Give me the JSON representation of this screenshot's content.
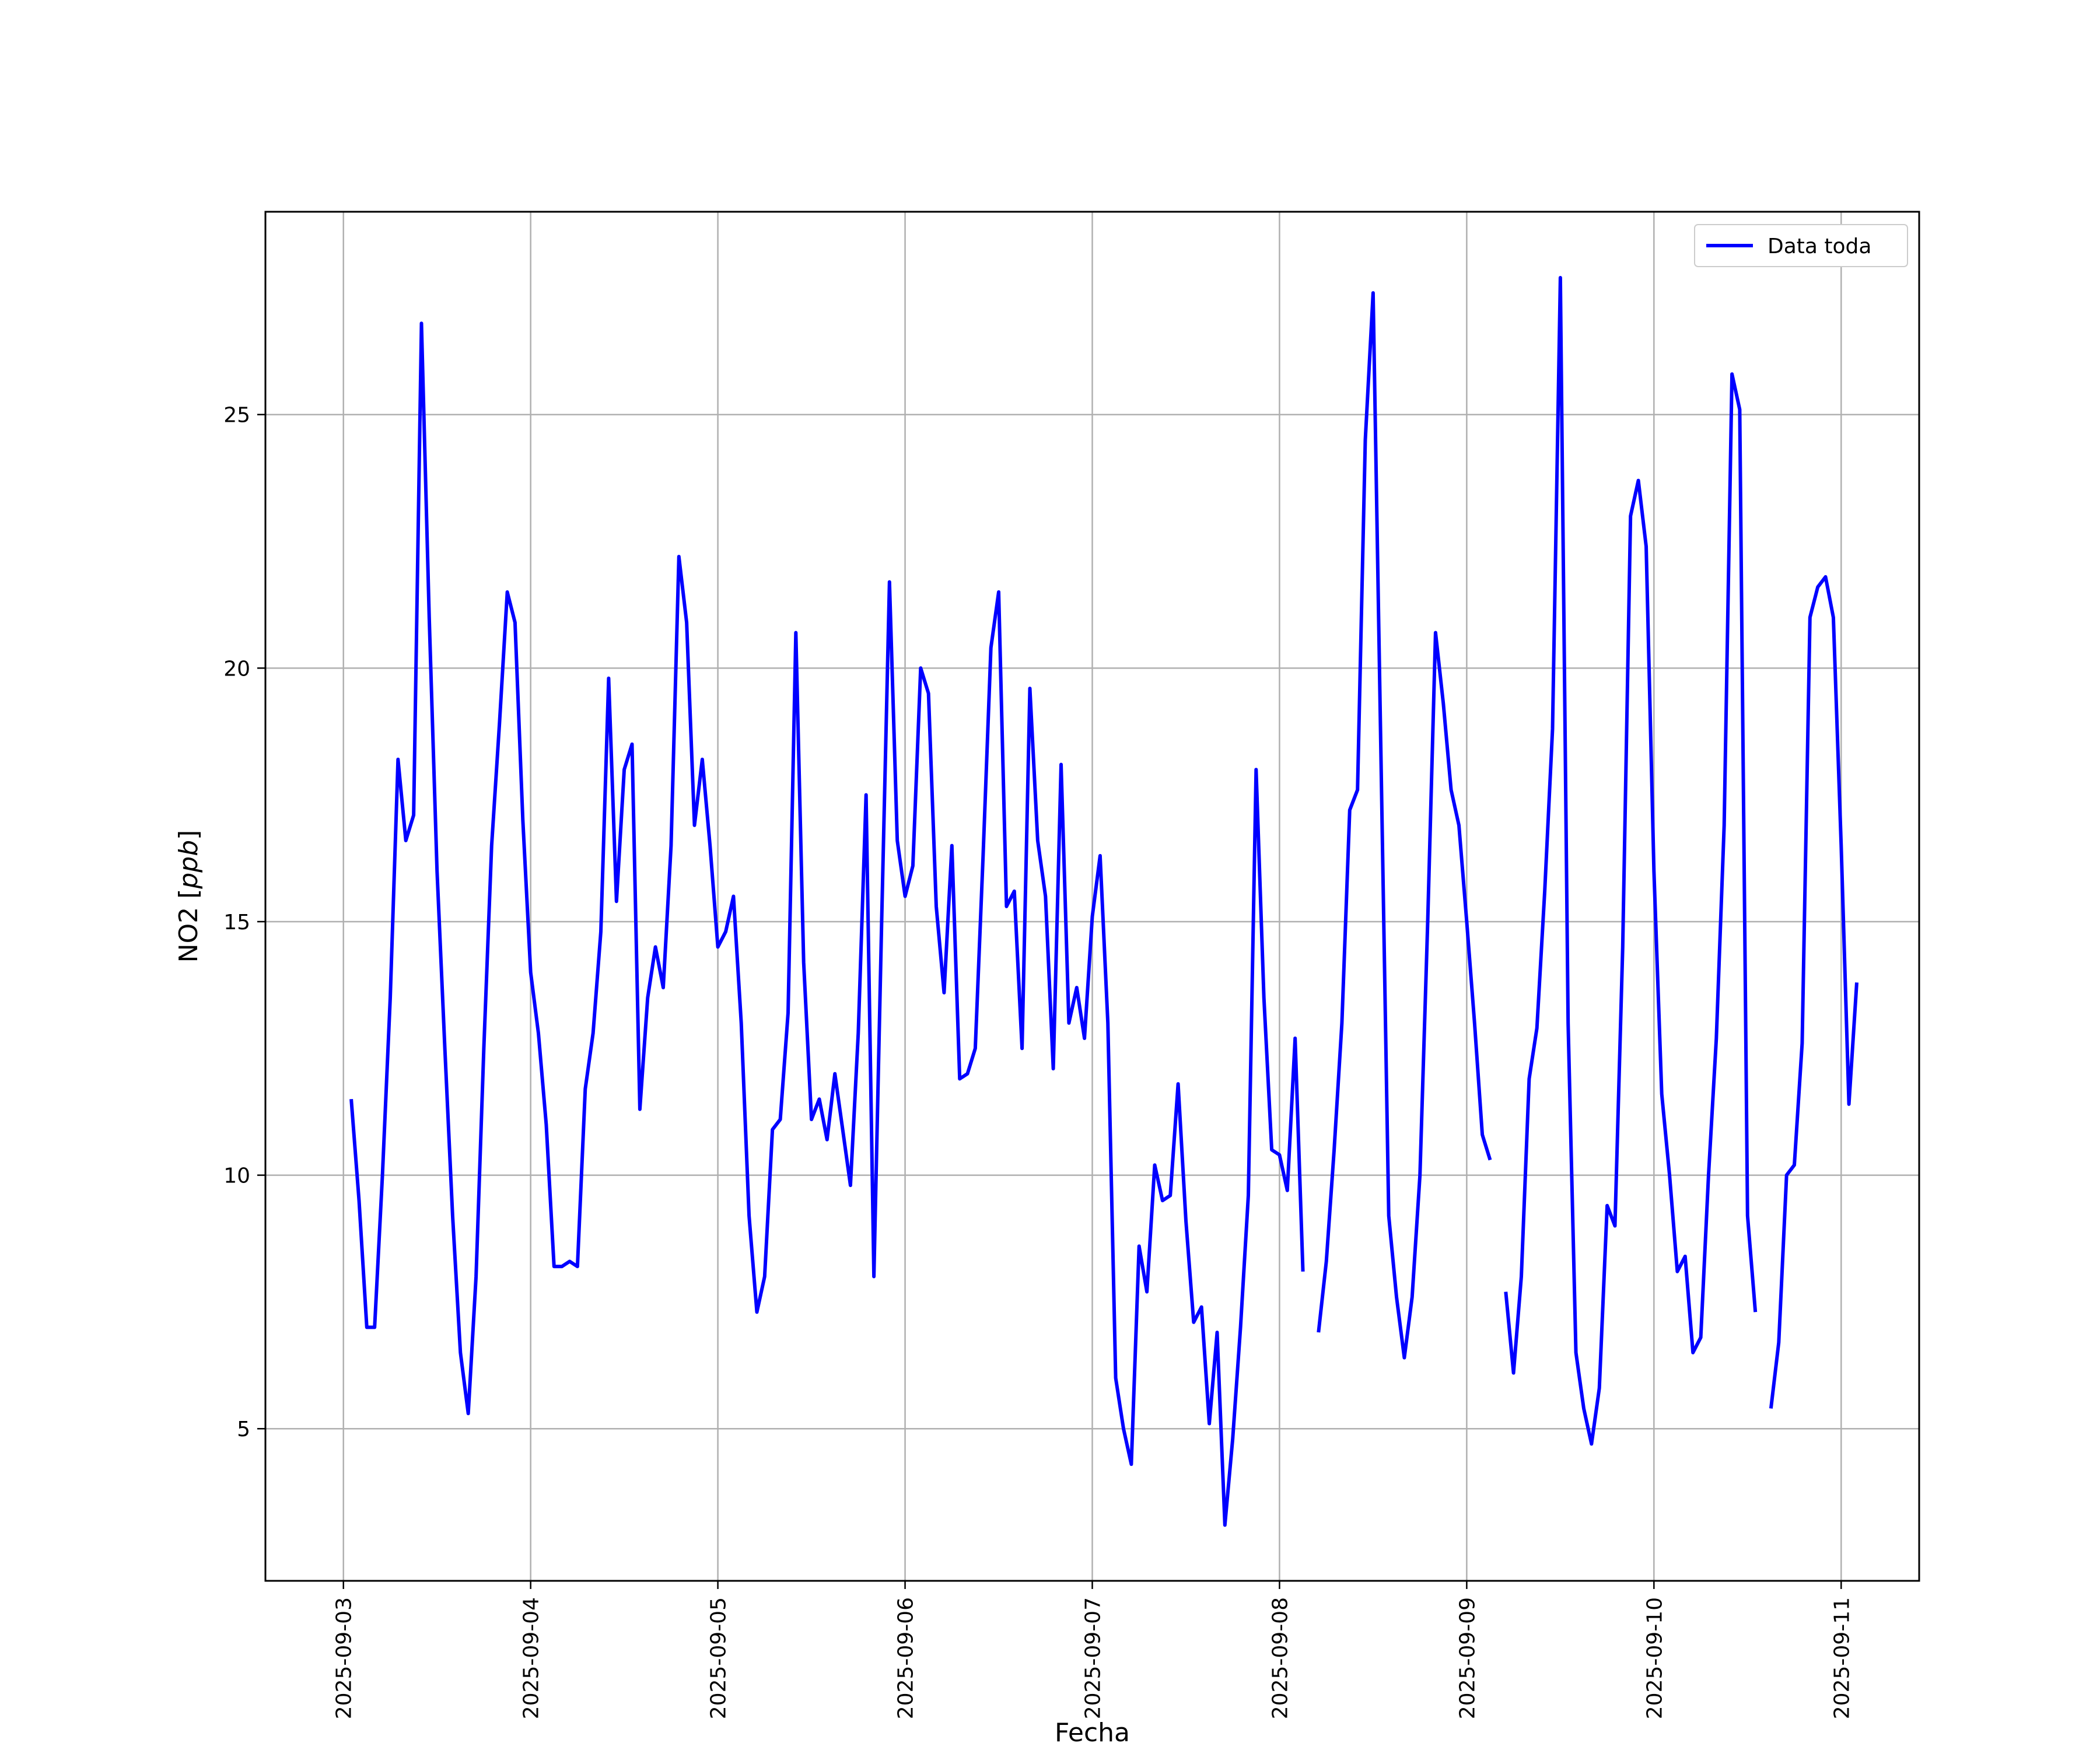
{
  "chart_data": {
    "type": "line",
    "title": "",
    "xlabel": "Fecha",
    "ylabel_text": "NO2 [",
    "ylabel_unit": "ppb",
    "ylabel_close": "]",
    "xlim": [
      "2025-09-02 14:00",
      "2025-09-11 10:00"
    ],
    "ylim": [
      2,
      29
    ],
    "grid": true,
    "legend_position": "top-right",
    "x_ticks": [
      "2025-09-03",
      "2025-09-04",
      "2025-09-05",
      "2025-09-06",
      "2025-09-07",
      "2025-09-08",
      "2025-09-09",
      "2025-09-10",
      "2025-09-11"
    ],
    "y_ticks": [
      5,
      10,
      15,
      20,
      25
    ],
    "series": [
      {
        "name": "Data toda",
        "color": "#0000ff",
        "points": [
          [
            "2025-09-03 01:00",
            11.5
          ],
          [
            "2025-09-03 02:00",
            9.5
          ],
          [
            "2025-09-03 03:00",
            7.0
          ],
          [
            "2025-09-03 04:00",
            7.0
          ],
          [
            "2025-09-03 05:00",
            10.0
          ],
          [
            "2025-09-03 06:00",
            13.5
          ],
          [
            "2025-09-03 07:00",
            18.2
          ],
          [
            "2025-09-03 08:00",
            16.6
          ],
          [
            "2025-09-03 09:00",
            17.1
          ],
          [
            "2025-09-03 10:00",
            26.8
          ],
          [
            "2025-09-03 11:00",
            21.0
          ],
          [
            "2025-09-03 12:00",
            16.0
          ],
          [
            "2025-09-03 13:00",
            12.5
          ],
          [
            "2025-09-03 14:00",
            9.2
          ],
          [
            "2025-09-03 15:00",
            6.5
          ],
          [
            "2025-09-03 16:00",
            5.3
          ],
          [
            "2025-09-03 17:00",
            8.0
          ],
          [
            "2025-09-03 18:00",
            12.5
          ],
          [
            "2025-09-03 19:00",
            16.5
          ],
          [
            "2025-09-03 20:00",
            18.9
          ],
          [
            "2025-09-03 21:00",
            21.5
          ],
          [
            "2025-09-03 22:00",
            20.9
          ],
          [
            "2025-09-03 23:00",
            17.0
          ],
          [
            "2025-09-04 00:00",
            14.0
          ],
          [
            "2025-09-04 01:00",
            12.8
          ],
          [
            "2025-09-04 02:00",
            11.0
          ],
          [
            "2025-09-04 03:00",
            8.2
          ],
          [
            "2025-09-04 04:00",
            8.2
          ],
          [
            "2025-09-04 05:00",
            8.3
          ],
          [
            "2025-09-04 06:00",
            8.2
          ],
          [
            "2025-09-04 07:00",
            11.7
          ],
          [
            "2025-09-04 08:00",
            12.8
          ],
          [
            "2025-09-04 09:00",
            14.8
          ],
          [
            "2025-09-04 10:00",
            19.8
          ],
          [
            "2025-09-04 11:00",
            15.4
          ],
          [
            "2025-09-04 12:00",
            18.0
          ],
          [
            "2025-09-04 13:00",
            18.5
          ],
          [
            "2025-09-04 14:00",
            11.3
          ],
          [
            "2025-09-04 15:00",
            13.5
          ],
          [
            "2025-09-04 16:00",
            14.5
          ],
          [
            "2025-09-04 17:00",
            13.7
          ],
          [
            "2025-09-04 18:00",
            16.5
          ],
          [
            "2025-09-04 19:00",
            22.2
          ],
          [
            "2025-09-04 20:00",
            20.9
          ],
          [
            "2025-09-04 21:00",
            16.9
          ],
          [
            "2025-09-04 22:00",
            18.2
          ],
          [
            "2025-09-04 23:00",
            16.5
          ],
          [
            "2025-09-05 00:00",
            14.5
          ],
          [
            "2025-09-05 01:00",
            14.8
          ],
          [
            "2025-09-05 02:00",
            15.5
          ],
          [
            "2025-09-05 03:00",
            13.0
          ],
          [
            "2025-09-05 04:00",
            9.2
          ],
          [
            "2025-09-05 05:00",
            7.3
          ],
          [
            "2025-09-05 06:00",
            8.0
          ],
          [
            "2025-09-05 07:00",
            10.9
          ],
          [
            "2025-09-05 08:00",
            11.1
          ],
          [
            "2025-09-05 09:00",
            13.2
          ],
          [
            "2025-09-05 10:00",
            20.7
          ],
          [
            "2025-09-05 11:00",
            14.2
          ],
          [
            "2025-09-05 12:00",
            11.1
          ],
          [
            "2025-09-05 13:00",
            11.5
          ],
          [
            "2025-09-05 14:00",
            10.7
          ],
          [
            "2025-09-05 15:00",
            12.0
          ],
          [
            "2025-09-05 16:00",
            10.9
          ],
          [
            "2025-09-05 17:00",
            9.8
          ],
          [
            "2025-09-05 18:00",
            12.8
          ],
          [
            "2025-09-05 19:00",
            17.5
          ],
          [
            "2025-09-05 20:00",
            8.0
          ],
          [
            "2025-09-05 21:00",
            15.0
          ],
          [
            "2025-09-05 22:00",
            21.7
          ],
          [
            "2025-09-05 23:00",
            16.6
          ],
          [
            "2025-09-06 00:00",
            15.5
          ],
          [
            "2025-09-06 01:00",
            16.1
          ],
          [
            "2025-09-06 02:00",
            20.0
          ],
          [
            "2025-09-06 03:00",
            19.5
          ],
          [
            "2025-09-06 04:00",
            15.3
          ],
          [
            "2025-09-06 05:00",
            13.6
          ],
          [
            "2025-09-06 06:00",
            16.5
          ],
          [
            "2025-09-06 07:00",
            11.9
          ],
          [
            "2025-09-06 08:00",
            12.0
          ],
          [
            "2025-09-06 09:00",
            12.5
          ],
          [
            "2025-09-06 10:00",
            16.3
          ],
          [
            "2025-09-06 11:00",
            20.4
          ],
          [
            "2025-09-06 12:00",
            21.5
          ],
          [
            "2025-09-06 13:00",
            15.3
          ],
          [
            "2025-09-06 14:00",
            15.6
          ],
          [
            "2025-09-06 15:00",
            12.5
          ],
          [
            "2025-09-06 16:00",
            19.6
          ],
          [
            "2025-09-06 17:00",
            16.6
          ],
          [
            "2025-09-06 18:00",
            15.5
          ],
          [
            "2025-09-06 19:00",
            12.1
          ],
          [
            "2025-09-06 20:00",
            18.1
          ],
          [
            "2025-09-06 21:00",
            13.0
          ],
          [
            "2025-09-06 22:00",
            13.7
          ],
          [
            "2025-09-06 23:00",
            12.7
          ],
          [
            "2025-09-07 00:00",
            15.1
          ],
          [
            "2025-09-07 01:00",
            16.3
          ],
          [
            "2025-09-07 02:00",
            13.0
          ],
          [
            "2025-09-07 03:00",
            6.0
          ],
          [
            "2025-09-07 04:00",
            5.0
          ],
          [
            "2025-09-07 05:00",
            4.3
          ],
          [
            "2025-09-07 06:00",
            8.6
          ],
          [
            "2025-09-07 07:00",
            7.7
          ],
          [
            "2025-09-07 08:00",
            10.2
          ],
          [
            "2025-09-07 09:00",
            9.5
          ],
          [
            "2025-09-07 10:00",
            9.6
          ],
          [
            "2025-09-07 11:00",
            11.8
          ],
          [
            "2025-09-07 12:00",
            9.1
          ],
          [
            "2025-09-07 13:00",
            7.1
          ],
          [
            "2025-09-07 14:00",
            7.4
          ],
          [
            "2025-09-07 15:00",
            5.1
          ],
          [
            "2025-09-07 16:00",
            6.9
          ],
          [
            "2025-09-07 17:00",
            3.1
          ],
          [
            "2025-09-07 18:00",
            4.8
          ],
          [
            "2025-09-07 19:00",
            7.0
          ],
          [
            "2025-09-07 20:00",
            9.6
          ],
          [
            "2025-09-07 21:00",
            18.0
          ],
          [
            "2025-09-07 22:00",
            13.5
          ],
          [
            "2025-09-07 23:00",
            10.5
          ],
          [
            "2025-09-08 00:00",
            10.4
          ],
          [
            "2025-09-08 01:00",
            9.7
          ],
          [
            "2025-09-08 02:00",
            12.7
          ],
          [
            "2025-09-08 03:00",
            8.1
          ],
          null,
          [
            "2025-09-08 05:00",
            6.9
          ],
          [
            "2025-09-08 06:00",
            8.3
          ],
          [
            "2025-09-08 07:00",
            10.5
          ],
          [
            "2025-09-08 08:00",
            13.0
          ],
          [
            "2025-09-08 09:00",
            17.2
          ],
          [
            "2025-09-08 10:00",
            17.6
          ],
          [
            "2025-09-08 11:00",
            24.5
          ],
          [
            "2025-09-08 12:00",
            27.4
          ],
          [
            "2025-09-08 13:00",
            18.3
          ],
          [
            "2025-09-08 14:00",
            9.2
          ],
          [
            "2025-09-08 15:00",
            7.6
          ],
          [
            "2025-09-08 16:00",
            6.4
          ],
          [
            "2025-09-08 17:00",
            7.6
          ],
          [
            "2025-09-08 18:00",
            10.0
          ],
          [
            "2025-09-08 19:00",
            15.0
          ],
          [
            "2025-09-08 20:00",
            20.7
          ],
          [
            "2025-09-08 21:00",
            19.3
          ],
          [
            "2025-09-08 22:00",
            17.6
          ],
          [
            "2025-09-08 23:00",
            16.9
          ],
          [
            "2025-09-09 00:00",
            15.0
          ],
          [
            "2025-09-09 01:00",
            13.0
          ],
          [
            "2025-09-09 02:00",
            10.8
          ],
          [
            "2025-09-09 03:00",
            10.3
          ],
          null,
          [
            "2025-09-09 05:00",
            7.7
          ],
          [
            "2025-09-09 06:00",
            6.1
          ],
          [
            "2025-09-09 07:00",
            8.0
          ],
          [
            "2025-09-09 08:00",
            11.9
          ],
          [
            "2025-09-09 09:00",
            12.9
          ],
          [
            "2025-09-09 10:00",
            15.6
          ],
          [
            "2025-09-09 11:00",
            18.8
          ],
          [
            "2025-09-09 12:00",
            27.7
          ],
          [
            "2025-09-09 13:00",
            13.0
          ],
          [
            "2025-09-09 14:00",
            6.5
          ],
          [
            "2025-09-09 15:00",
            5.4
          ],
          [
            "2025-09-09 16:00",
            4.7
          ],
          [
            "2025-09-09 17:00",
            5.8
          ],
          [
            "2025-09-09 18:00",
            9.4
          ],
          [
            "2025-09-09 19:00",
            9.0
          ],
          [
            "2025-09-09 20:00",
            14.5
          ],
          [
            "2025-09-09 21:00",
            23.0
          ],
          [
            "2025-09-09 22:00",
            23.7
          ],
          [
            "2025-09-09 23:00",
            22.4
          ],
          [
            "2025-09-10 00:00",
            16.0
          ],
          [
            "2025-09-10 01:00",
            11.6
          ],
          [
            "2025-09-10 02:00",
            10.0
          ],
          [
            "2025-09-10 03:00",
            8.1
          ],
          [
            "2025-09-10 04:00",
            8.4
          ],
          [
            "2025-09-10 05:00",
            6.5
          ],
          [
            "2025-09-10 06:00",
            6.8
          ],
          [
            "2025-09-10 07:00",
            10.0
          ],
          [
            "2025-09-10 08:00",
            12.7
          ],
          [
            "2025-09-10 09:00",
            16.9
          ],
          [
            "2025-09-10 10:00",
            25.8
          ],
          [
            "2025-09-10 11:00",
            25.1
          ],
          [
            "2025-09-10 12:00",
            9.2
          ],
          [
            "2025-09-10 13:00",
            7.3
          ],
          null,
          [
            "2025-09-10 15:00",
            5.4
          ],
          [
            "2025-09-10 16:00",
            6.7
          ],
          [
            "2025-09-10 17:00",
            10.0
          ],
          [
            "2025-09-10 18:00",
            10.2
          ],
          [
            "2025-09-10 19:00",
            12.6
          ],
          [
            "2025-09-10 20:00",
            21.0
          ],
          [
            "2025-09-10 21:00",
            21.6
          ],
          [
            "2025-09-10 22:00",
            21.8
          ],
          [
            "2025-09-10 23:00",
            21.0
          ],
          [
            "2025-09-11 00:00",
            16.5
          ],
          [
            "2025-09-11 01:00",
            11.4
          ],
          [
            "2025-09-11 02:00",
            13.8
          ]
        ]
      }
    ]
  }
}
